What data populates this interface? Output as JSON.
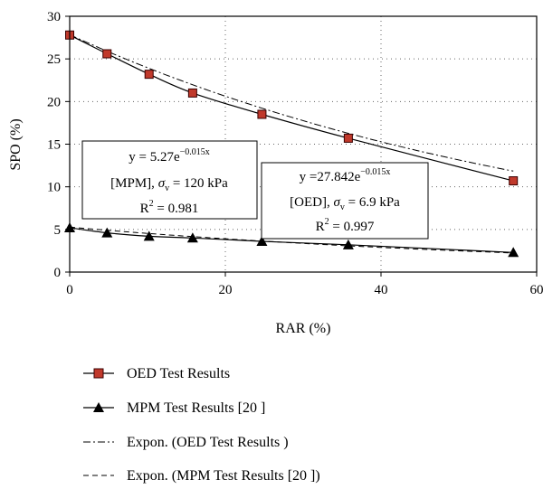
{
  "chart_data": {
    "type": "scatter",
    "xlabel": "RAR (%)",
    "ylabel": "SPO (%)",
    "xlim": [
      0,
      60
    ],
    "ylim": [
      0,
      30
    ],
    "xticks": [
      "0",
      "20",
      "40",
      "60"
    ],
    "yticks": [
      "0",
      "5",
      "10",
      "15",
      "20",
      "25",
      "30"
    ],
    "grid": "dotted",
    "series": [
      {
        "name": "OED Test Results",
        "marker": "square",
        "color": "#c0392b",
        "x": [
          0,
          4.8,
          10.2,
          15.8,
          24.7,
          35.8,
          57
        ],
        "y": [
          27.8,
          25.6,
          23.2,
          21.0,
          18.5,
          15.7,
          10.7
        ]
      },
      {
        "name": "MPM Test Results [20 ]",
        "marker": "triangle",
        "color": "#000000",
        "x": [
          0,
          4.8,
          10.2,
          15.8,
          24.7,
          35.8,
          57
        ],
        "y": [
          5.2,
          4.6,
          4.2,
          4.0,
          3.6,
          3.2,
          2.3
        ]
      },
      {
        "name": "Expon. (OED Test Results )",
        "style": "dash-dot",
        "a": 27.842,
        "b": -0.015
      },
      {
        "name": "Expon. (MPM Test Results [20 ])",
        "style": "dashed",
        "a": 5.27,
        "b": -0.015
      }
    ],
    "annotations": [
      {
        "id": "mpm",
        "eq_prefix": "y = 5.27e",
        "eq_exp": "−0.015x",
        "cond_label": "[MPM], ",
        "sigma": "σ",
        "sigma_sub": "v",
        "cond_value": " = 120 kPa",
        "r2_prefix": "R",
        "r2_sup": "2",
        "r2_value": " = 0.981"
      },
      {
        "id": "oed",
        "eq_prefix": "y =27.842e",
        "eq_exp": "−0.015x",
        "cond_label": "[OED], ",
        "sigma": "σ",
        "sigma_sub": "v",
        "cond_value": " = 6.9 kPa",
        "r2_prefix": "R",
        "r2_sup": "2",
        "r2_value": " = 0.997"
      }
    ]
  }
}
